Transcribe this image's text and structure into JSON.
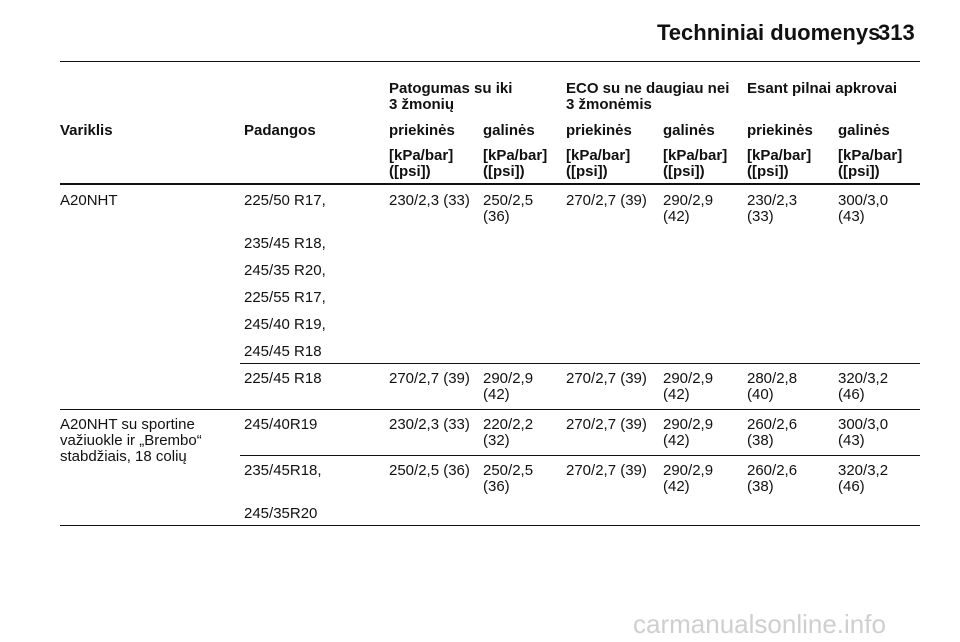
{
  "page": {
    "header_title": "Techniniai duomenys",
    "page_number": "313"
  },
  "table": {
    "group_headers": {
      "comfort": "Patogumas su iki\n3 žmonių",
      "eco": "ECO su ne daugiau nei\n3 žmonėmis",
      "full": "Esant pilnai apkrovai"
    },
    "columns": {
      "engine": "Variklis",
      "tyres": "Padangos",
      "front": "priekinės",
      "rear": "galinės"
    },
    "unit": "[kPa/bar]\n([psi])",
    "rows": [
      {
        "engine": "A20NHT",
        "tyres": "225/50 R17,",
        "c_front": "230/2,3 (33)",
        "c_rear": "250/2,5\n(36)",
        "e_front": "270/2,7 (39)",
        "e_rear": "290/2,9\n(42)",
        "f_front": "230/2,3\n(33)",
        "f_rear": "300/3,0\n(43)"
      },
      {
        "tyres": "235/45 R18,"
      },
      {
        "tyres": "245/35 R20,"
      },
      {
        "tyres": "225/55 R17,"
      },
      {
        "tyres": "245/40 R19,"
      },
      {
        "tyres": "245/45 R18"
      },
      {
        "tyres": "225/45 R18",
        "c_front": "270/2,7 (39)",
        "c_rear": "290/2,9\n(42)",
        "e_front": "270/2,7 (39)",
        "e_rear": "290/2,9\n(42)",
        "f_front": "280/2,8\n(40)",
        "f_rear": "320/3,2\n(46)"
      },
      {
        "engine": "A20NHT su sportine\nvažiuokle ir „Brembo“\nstabdžiais, 18 colių",
        "tyres": "245/40R19",
        "c_front": "230/2,3 (33)",
        "c_rear": "220/2,2\n(32)",
        "e_front": "270/2,7 (39)",
        "e_rear": "290/2,9\n(42)",
        "f_front": "260/2,6\n(38)",
        "f_rear": "300/3,0\n(43)"
      },
      {
        "tyres": "235/45R18,",
        "c_front": "250/2,5 (36)",
        "c_rear": "250/2,5\n(36)",
        "e_front": "270/2,7 (39)",
        "e_rear": "290/2,9\n(42)",
        "f_front": "260/2,6\n(38)",
        "f_rear": "320/3,2\n(46)"
      },
      {
        "tyres": "245/35R20"
      }
    ]
  },
  "watermark": "carmanualsonline.info"
}
